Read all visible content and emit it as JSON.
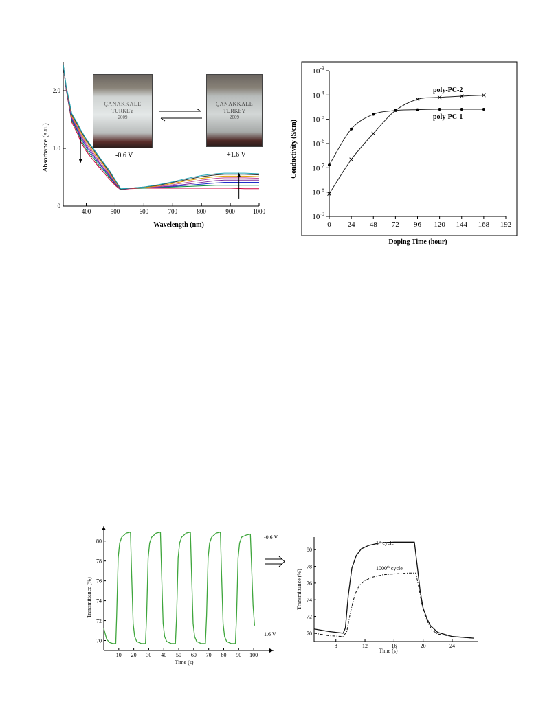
{
  "chart_data": [
    {
      "type": "line",
      "title": "",
      "xlabel": "Wavelength (nm)",
      "ylabel": "Absorbance (a.u.)",
      "xlim": [
        320,
        1000
      ],
      "ylim": [
        0,
        2.5
      ],
      "x_ticks": [
        400,
        500,
        600,
        700,
        800,
        900,
        1000
      ],
      "y_ticks": [
        0,
        1.0,
        2.0
      ],
      "y_tick_labels": [
        "0",
        "1.0",
        "2.0"
      ],
      "annotations": [
        "-0.6 V",
        "+1.6 V"
      ],
      "inset_photo_text": [
        "ÇANAKKALE",
        "TURKEY",
        "2009"
      ],
      "series_colors": [
        "#d0003f",
        "#0a8f3c",
        "#2030c8",
        "#7a2b9c",
        "#c24c9a",
        "#e0a000",
        "#333333",
        "#23a6b8"
      ],
      "series": [
        {
          "x": [
            320,
            330,
            350,
            370,
            380,
            400,
            420,
            450,
            480,
            500,
            520,
            550,
            600,
            650,
            700,
            750,
            800,
            850,
            880,
            900,
            950,
            1000
          ],
          "y": [
            2.45,
            2.02,
            1.45,
            1.25,
            1.12,
            0.95,
            0.82,
            0.64,
            0.47,
            0.36,
            0.28,
            0.3,
            0.31,
            0.31,
            0.31,
            0.31,
            0.31,
            0.31,
            0.31,
            0.31,
            0.3,
            0.3
          ]
        },
        {
          "x": [
            320,
            330,
            350,
            370,
            380,
            400,
            420,
            450,
            480,
            500,
            520,
            550,
            600,
            650,
            700,
            750,
            800,
            850,
            880,
            900,
            950,
            1000
          ],
          "y": [
            2.45,
            2.03,
            1.48,
            1.29,
            1.16,
            0.98,
            0.86,
            0.67,
            0.5,
            0.38,
            0.28,
            0.31,
            0.31,
            0.32,
            0.33,
            0.34,
            0.35,
            0.36,
            0.36,
            0.36,
            0.36,
            0.36
          ]
        },
        {
          "x": [
            320,
            330,
            350,
            370,
            380,
            400,
            420,
            450,
            480,
            500,
            520,
            550,
            600,
            650,
            700,
            750,
            800,
            850,
            880,
            900,
            950,
            1000
          ],
          "y": [
            2.45,
            2.04,
            1.5,
            1.31,
            1.19,
            1.02,
            0.89,
            0.7,
            0.52,
            0.39,
            0.28,
            0.31,
            0.32,
            0.33,
            0.34,
            0.36,
            0.38,
            0.4,
            0.41,
            0.41,
            0.41,
            0.41
          ]
        },
        {
          "x": [
            320,
            330,
            350,
            370,
            380,
            400,
            420,
            450,
            480,
            500,
            520,
            550,
            600,
            650,
            700,
            750,
            800,
            850,
            880,
            900,
            950,
            1000
          ],
          "y": [
            2.45,
            2.05,
            1.52,
            1.34,
            1.22,
            1.05,
            0.92,
            0.72,
            0.54,
            0.4,
            0.28,
            0.31,
            0.32,
            0.33,
            0.35,
            0.38,
            0.41,
            0.44,
            0.45,
            0.45,
            0.45,
            0.45
          ]
        },
        {
          "x": [
            320,
            330,
            350,
            370,
            380,
            400,
            420,
            450,
            480,
            500,
            520,
            550,
            600,
            650,
            700,
            750,
            800,
            850,
            880,
            900,
            950,
            1000
          ],
          "y": [
            2.45,
            2.06,
            1.54,
            1.36,
            1.25,
            1.08,
            0.95,
            0.75,
            0.56,
            0.42,
            0.29,
            0.31,
            0.32,
            0.34,
            0.37,
            0.41,
            0.45,
            0.48,
            0.49,
            0.49,
            0.49,
            0.48
          ]
        },
        {
          "x": [
            320,
            330,
            350,
            370,
            380,
            400,
            420,
            450,
            480,
            500,
            520,
            550,
            600,
            650,
            700,
            750,
            800,
            850,
            880,
            900,
            950,
            1000
          ],
          "y": [
            2.45,
            2.07,
            1.56,
            1.38,
            1.28,
            1.11,
            0.98,
            0.78,
            0.58,
            0.43,
            0.29,
            0.31,
            0.32,
            0.35,
            0.39,
            0.44,
            0.48,
            0.51,
            0.52,
            0.52,
            0.52,
            0.51
          ]
        },
        {
          "x": [
            320,
            330,
            350,
            370,
            380,
            400,
            420,
            450,
            480,
            500,
            520,
            550,
            600,
            650,
            700,
            750,
            800,
            850,
            880,
            900,
            950,
            1000
          ],
          "y": [
            2.45,
            2.08,
            1.58,
            1.41,
            1.31,
            1.14,
            1.01,
            0.8,
            0.6,
            0.45,
            0.29,
            0.31,
            0.33,
            0.36,
            0.41,
            0.46,
            0.51,
            0.54,
            0.55,
            0.55,
            0.55,
            0.54
          ]
        },
        {
          "x": [
            320,
            330,
            350,
            370,
            380,
            400,
            420,
            450,
            480,
            500,
            520,
            550,
            600,
            650,
            700,
            750,
            800,
            850,
            880,
            900,
            950,
            1000
          ],
          "y": [
            2.45,
            2.09,
            1.6,
            1.43,
            1.33,
            1.16,
            1.03,
            0.82,
            0.62,
            0.46,
            0.3,
            0.31,
            0.33,
            0.37,
            0.42,
            0.48,
            0.53,
            0.56,
            0.57,
            0.57,
            0.57,
            0.56
          ]
        }
      ]
    },
    {
      "type": "line",
      "title": "",
      "xlabel": "Doping Time (hour)",
      "ylabel": "Conductivity (S/cm)",
      "yscale": "log",
      "xlim": [
        0,
        192
      ],
      "ylim": [
        1e-09,
        0.001
      ],
      "x_ticks": [
        0,
        24,
        48,
        72,
        96,
        120,
        144,
        168,
        192
      ],
      "y_tick_exponents": [
        -3,
        -4,
        -5,
        -6,
        -7,
        -8,
        -9
      ],
      "y_tick_base": "10",
      "series": [
        {
          "name": "poly-PC-1",
          "marker": "dot",
          "x": [
            0,
            24,
            48,
            72,
            96,
            120,
            144,
            168
          ],
          "y": [
            1.3e-07,
            4e-06,
            1.6e-05,
            2.3e-05,
            2.5e-05,
            2.6e-05,
            2.6e-05,
            2.6e-05
          ]
        },
        {
          "name": "poly-PC-2",
          "marker": "cross",
          "x": [
            0,
            24,
            48,
            72,
            96,
            120,
            144,
            168
          ],
          "y": [
            8.5e-09,
            2.2e-07,
            2.6e-06,
            2.3e-05,
            6.7e-05,
            8e-05,
            9e-05,
            9.8e-05
          ]
        }
      ]
    },
    {
      "type": "line",
      "title": "",
      "xlabel": "Time (s)",
      "ylabel": "Transmittance (%)",
      "xlim": [
        0,
        105
      ],
      "ylim": [
        69,
        81.5
      ],
      "x_ticks": [
        10,
        20,
        30,
        40,
        50,
        60,
        70,
        80,
        90,
        100
      ],
      "y_ticks": [
        70,
        72,
        74,
        76,
        78,
        80
      ],
      "annotations": [
        "-0.6 V",
        "1.6 V"
      ],
      "series_color": "#3fa63c",
      "series": [
        {
          "x": [
            0,
            2,
            4,
            6,
            8,
            8.6,
            9.6,
            10.6,
            12,
            15,
            17.8,
            18.6,
            19.6,
            20.6,
            22,
            25,
            27.8,
            28.6,
            29.6,
            30.6,
            32,
            35,
            37.8,
            38.6,
            39.6,
            40.6,
            42,
            45,
            47.8,
            48.6,
            49.6,
            50.6,
            52,
            55,
            57.8,
            58.6,
            59.6,
            60.6,
            62,
            65,
            67.8,
            68.6,
            69.6,
            70.6,
            72,
            75,
            77.8,
            78.6,
            79.6,
            80.6,
            82,
            85,
            87.8,
            88.6,
            89.6,
            90.6,
            92,
            95,
            97.8,
            98.6,
            99.6,
            100.6
          ],
          "y": [
            71.2,
            70.1,
            69.8,
            69.7,
            69.7,
            72.5,
            78.3,
            79.8,
            80.4,
            80.8,
            80.9,
            76.6,
            71.7,
            70.4,
            69.9,
            69.7,
            69.7,
            72.5,
            78.3,
            79.8,
            80.4,
            80.8,
            80.9,
            76.6,
            71.7,
            70.4,
            69.9,
            69.7,
            69.7,
            72.5,
            78.3,
            79.8,
            80.4,
            80.8,
            80.9,
            76.6,
            71.7,
            70.4,
            69.9,
            69.7,
            69.7,
            72.5,
            78.3,
            79.8,
            80.4,
            80.8,
            80.9,
            76.6,
            71.7,
            70.4,
            69.9,
            69.7,
            69.7,
            72.5,
            78.3,
            79.8,
            80.4,
            80.6,
            80.7,
            77.5,
            73.5,
            71.5
          ]
        }
      ]
    },
    {
      "type": "line",
      "title": "",
      "xlabel": "Time (s)",
      "ylabel": "Transmittance (%)",
      "xlim": [
        5,
        27.5
      ],
      "ylim": [
        69,
        81.5
      ],
      "x_ticks": [
        8,
        12,
        16,
        20,
        24
      ],
      "y_ticks": [
        70,
        72,
        74,
        76,
        78,
        80
      ],
      "series": [
        {
          "name": "1",
          "label_suffix": "st",
          "label_text": " cycle",
          "style": "solid",
          "x": [
            5,
            7,
            9,
            9.3,
            9.7,
            10.2,
            10.8,
            11.5,
            12.5,
            14,
            16,
            18,
            18.8,
            19.2,
            19.6,
            20,
            20.5,
            21,
            22,
            24,
            27
          ],
          "y": [
            70.5,
            70.2,
            70.0,
            70.6,
            74.5,
            77.8,
            79.3,
            80.1,
            80.5,
            80.8,
            80.9,
            80.9,
            80.9,
            78.0,
            75.0,
            73.0,
            71.8,
            70.9,
            70.1,
            69.6,
            69.4
          ]
        },
        {
          "name": "1000",
          "label_suffix": "th",
          "label_text": " cycle",
          "style": "dashdot",
          "x": [
            5,
            7,
            9,
            9.5,
            10,
            10.6,
            11.2,
            12,
            13,
            14.5,
            16,
            18,
            19,
            19.4,
            19.8,
            20.2,
            20.7,
            21.2,
            22,
            24,
            27
          ],
          "y": [
            70.0,
            69.7,
            69.6,
            70.2,
            72.5,
            74.6,
            75.7,
            76.3,
            76.7,
            77.0,
            77.1,
            77.2,
            77.2,
            75.5,
            73.6,
            72.2,
            71.2,
            70.4,
            69.9,
            69.6,
            69.4
          ]
        }
      ]
    }
  ]
}
